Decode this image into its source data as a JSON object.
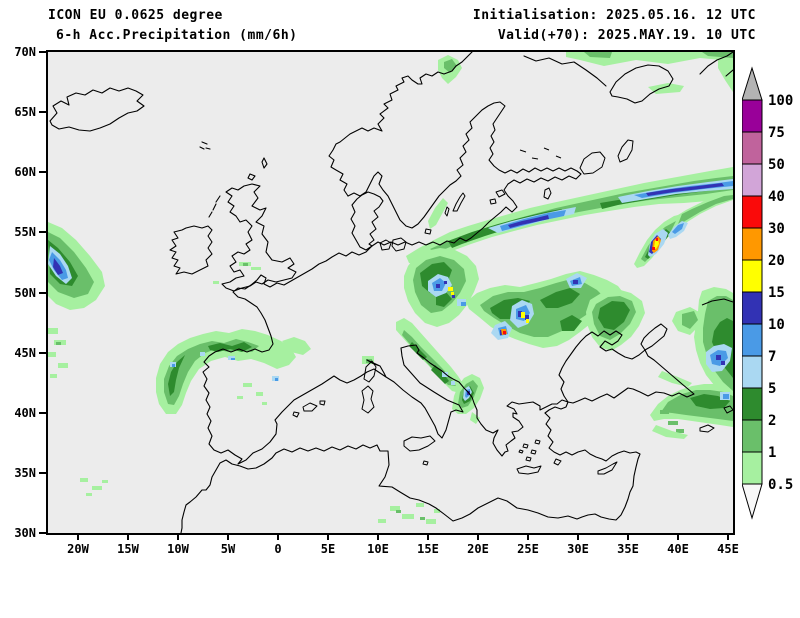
{
  "header": {
    "model_line": "ICON EU 0.0625 degree",
    "product_line": "6-h Acc.Precipitation (mm/6h)",
    "init_line": "Initialisation: 2025.05.16. 12 UTC",
    "valid_line": "Valid(+70): 2025.MAY.19. 10 UTC"
  },
  "axes": {
    "lat_ticks": [
      "70N",
      "65N",
      "60N",
      "55N",
      "50N",
      "45N",
      "40N",
      "35N",
      "30N"
    ],
    "lon_ticks": [
      "20W",
      "15W",
      "10W",
      "5W",
      "0",
      "5E",
      "10E",
      "15E",
      "20E",
      "25E",
      "30E",
      "35E",
      "40E",
      "45E"
    ]
  },
  "legend": {
    "unit": "mm/6h",
    "levels": [
      "100",
      "75",
      "50",
      "40",
      "30",
      "20",
      "15",
      "10",
      "7",
      "5",
      "2",
      "1",
      "0.5"
    ],
    "band_colors": [
      "#990099",
      "#c0639c",
      "#d2a5d8",
      "#fa0a0a",
      "#ff9800",
      "#ffff00",
      "#3232b4",
      "#4a9ae6",
      "#aad8f2",
      "#2e8b2e",
      "#6abf6a",
      "#a6f0a0"
    ],
    "above_max_color": "#b4b4b4",
    "below_min_color": "#f8f8f8"
  },
  "map": {
    "background": "#ececec",
    "coastline_color": "#000000"
  }
}
